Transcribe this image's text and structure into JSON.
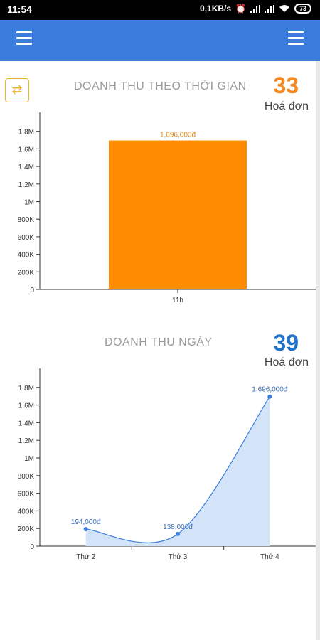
{
  "status_bar": {
    "time": "11:54",
    "net_speed": "0,1KB/s",
    "battery": "73"
  },
  "toolbar": {
    "left_menu_icon": "menu-icon",
    "right_menu_icon": "menu-icon"
  },
  "swap_icon": "swap-horizontal-icon",
  "section1": {
    "title": "DOANH THU THEO THỜI GIAN",
    "count": "33",
    "count_label": "Hoá đơn",
    "count_color": "#f5891f"
  },
  "section2": {
    "title": "DOANH THU NGÀY",
    "count": "39",
    "count_label": "Hoá đơn",
    "count_color": "#1f73c9"
  },
  "chart_data": [
    {
      "type": "bar",
      "categories": [
        "11h"
      ],
      "values": [
        1696000
      ],
      "data_labels": [
        "1,696,000đ"
      ],
      "y_ticks": [
        "0",
        "200K",
        "400K",
        "600K",
        "800K",
        "1M",
        "1.2M",
        "1.4M",
        "1.6M",
        "1.8M"
      ],
      "ylim": [
        0,
        2000000
      ],
      "bar_color": "#ff8c00",
      "label_color": "#e08a1a",
      "grid": false
    },
    {
      "type": "area",
      "categories": [
        "Thứ 2",
        "Thứ 3",
        "Thứ 4"
      ],
      "values": [
        194000,
        138000,
        1696000
      ],
      "data_labels": [
        "194,000đ",
        "138,000đ",
        "1,696,000đ"
      ],
      "y_ticks": [
        "0",
        "200K",
        "400K",
        "600K",
        "800K",
        "1M",
        "1.2M",
        "1.4M",
        "1.6M",
        "1.8M"
      ],
      "ylim": [
        0,
        2000000
      ],
      "line_color": "#3b7ddd",
      "fill_color": "#d3e3f8",
      "label_color": "#3b6fb8",
      "grid": false
    }
  ]
}
